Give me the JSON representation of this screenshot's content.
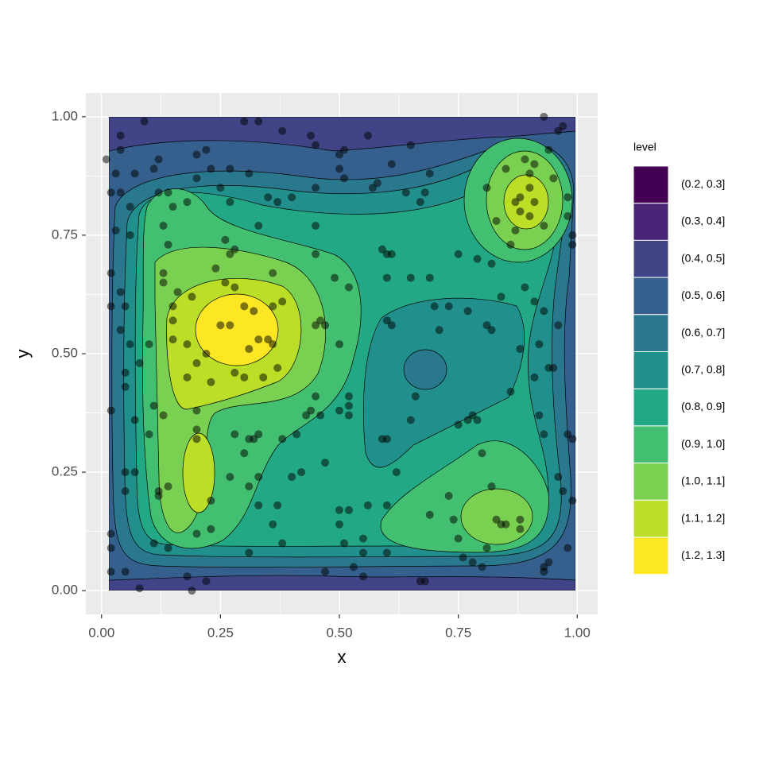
{
  "chart_data": {
    "type": "contour",
    "xlabel": "x",
    "ylabel": "y",
    "legend_title": "level",
    "levels": [
      "(0.2, 0.3]",
      "(0.3, 0.4]",
      "(0.4, 0.5]",
      "(0.5, 0.6]",
      "(0.6, 0.7]",
      "(0.7, 0.8]",
      "(0.8, 0.9]",
      "(0.9, 1.0]",
      "(1.0, 1.1]",
      "(1.1, 1.2]",
      "(1.2, 1.3]"
    ],
    "level_colors": [
      "#440154",
      "#482576",
      "#414487",
      "#35608D",
      "#2A788E",
      "#21908C",
      "#22A884",
      "#43BF71",
      "#7AD151",
      "#BBDF27",
      "#FDE725"
    ],
    "point_color": "#000000",
    "xlim": [
      -0.033,
      1.043
    ],
    "ylim": [
      -0.05,
      1.05
    ],
    "xticks": [
      {
        "value": 0,
        "label": "0.00"
      },
      0.25,
      {
        "value": 0.5,
        "label": "0.50"
      },
      0.75,
      {
        "value": 1,
        "label": "1.00"
      }
    ],
    "yticks": [
      {
        "value": 0,
        "label": "0.00"
      },
      0.25,
      {
        "value": 0.5,
        "label": "0.50"
      },
      0.75,
      {
        "value": 1,
        "label": "1.00"
      }
    ],
    "grid": true,
    "minor_grid": true,
    "x": [
      0.01,
      0.04,
      0.09,
      0.04,
      0.02,
      0.04,
      0.03,
      0.06,
      0.07,
      0.12,
      0.11,
      0.14,
      0.12,
      0.03,
      0.06,
      0.13,
      0.14,
      0.2,
      0.22,
      0.2,
      0.18,
      0.23,
      0.15,
      0.13,
      0.13,
      0.02,
      0.02,
      0.05,
      0.04,
      0.04,
      0.06,
      0.05,
      0.05,
      0.08,
      0.1,
      0.02,
      0.07,
      0.1,
      0.11,
      0.13,
      0.05,
      0.07,
      0.05,
      0.12,
      0.14,
      0.12,
      0.02,
      0.02,
      0.05,
      0.02,
      0.08,
      0.11,
      0.14,
      0.18,
      0.19,
      0.22,
      0.2,
      0.23,
      0.23,
      0.2,
      0.2,
      0.2,
      0.18,
      0.23,
      0.18,
      0.22,
      0.2,
      0.15,
      0.15,
      0.15,
      0.16,
      0.19,
      0.24,
      0.26,
      0.28,
      0.27,
      0.26,
      0.28,
      0.25,
      0.27,
      0.3,
      0.32,
      0.33,
      0.35,
      0.31,
      0.34,
      0.28,
      0.3,
      0.36,
      0.37,
      0.36,
      0.38,
      0.36,
      0.27,
      0.25,
      0.27,
      0.31,
      0.35,
      0.33,
      0.3,
      0.33,
      0.38,
      0.44,
      0.45,
      0.5,
      0.51,
      0.56,
      0.5,
      0.51,
      0.45,
      0.58,
      0.4,
      0.37,
      0.45,
      0.45,
      0.49,
      0.52,
      0.5,
      0.47,
      0.46,
      0.45,
      0.45,
      0.44,
      0.46,
      0.43,
      0.52,
      0.52,
      0.52,
      0.5,
      0.41,
      0.32,
      0.31,
      0.28,
      0.3,
      0.33,
      0.38,
      0.33,
      0.31,
      0.27,
      0.33,
      0.37,
      0.36,
      0.31,
      0.38,
      0.4,
      0.42,
      0.47,
      0.5,
      0.5,
      0.51,
      0.52,
      0.55,
      0.55,
      0.56,
      0.6,
      0.6,
      0.53,
      0.55,
      0.47,
      0.6,
      0.59,
      0.62,
      0.6,
      0.61,
      0.59,
      0.6,
      0.61,
      0.6,
      0.65,
      0.69,
      0.7,
      0.73,
      0.77,
      0.71,
      0.64,
      0.67,
      0.65,
      0.69,
      0.68,
      0.61,
      0.57,
      0.66,
      0.65,
      0.67,
      0.68,
      0.74,
      0.69,
      0.73,
      0.75,
      0.77,
      0.78,
      0.79,
      0.8,
      0.82,
      0.83,
      0.84,
      0.85,
      0.88,
      0.88,
      0.81,
      0.75,
      0.76,
      0.78,
      0.8,
      0.93,
      0.94,
      0.93,
      0.98,
      0.97,
      0.96,
      0.99,
      0.93,
      0.92,
      0.95,
      0.94,
      0.92,
      0.96,
      0.93,
      0.98,
      0.99,
      0.99,
      0.99,
      0.98,
      0.98,
      0.95,
      0.91,
      0.88,
      0.9,
      0.88,
      0.87,
      0.9,
      0.93,
      0.87,
      0.86,
      0.83,
      0.81,
      0.85,
      0.89,
      0.9,
      0.91,
      0.94,
      0.93,
      0.96,
      0.97,
      0.82,
      0.75,
      0.79,
      0.84,
      0.81,
      0.82,
      0.89,
      0.91,
      0.88,
      0.86,
      0.91
    ],
    "y": [
      0.91,
      0.96,
      0.99,
      0.93,
      0.84,
      0.84,
      0.88,
      0.81,
      0.88,
      0.91,
      0.89,
      0.84,
      0.84,
      0.76,
      0.75,
      0.77,
      0.73,
      0.92,
      0.93,
      0.87,
      0.82,
      0.89,
      0.81,
      0.67,
      0.65,
      0.67,
      0.6,
      0.6,
      0.63,
      0.55,
      0.52,
      0.46,
      0.43,
      0.48,
      0.52,
      0.38,
      0.36,
      0.33,
      0.39,
      0.37,
      0.25,
      0.25,
      0.21,
      0.21,
      0.22,
      0.2,
      0.12,
      0.09,
      0.04,
      0.04,
      0.005,
      0.1,
      0.09,
      0.03,
      0,
      0.02,
      0.12,
      0.13,
      0.19,
      0.32,
      0.34,
      0.38,
      0.45,
      0.44,
      0.52,
      0.5,
      0.48,
      0.53,
      0.6,
      0.57,
      0.63,
      0.62,
      0.68,
      0.65,
      0.64,
      0.71,
      0.74,
      0.72,
      0.56,
      0.56,
      0.6,
      0.59,
      0.53,
      0.53,
      0.51,
      0.45,
      0.46,
      0.45,
      0.52,
      0.47,
      0.6,
      0.61,
      0.67,
      0.82,
      0.85,
      0.89,
      0.88,
      0.83,
      0.77,
      0.99,
      0.99,
      0.97,
      0.96,
      0.94,
      0.92,
      0.93,
      0.96,
      0.89,
      0.87,
      0.85,
      0.86,
      0.83,
      0.82,
      0.77,
      0.71,
      0.66,
      0.64,
      0.52,
      0.56,
      0.57,
      0.56,
      0.41,
      0.38,
      0.37,
      0.37,
      0.41,
      0.39,
      0.37,
      0.38,
      0.33,
      0.32,
      0.32,
      0.33,
      0.29,
      0.33,
      0.32,
      0.24,
      0.22,
      0.24,
      0.18,
      0.18,
      0.14,
      0.08,
      0.1,
      0.24,
      0.25,
      0.27,
      0.17,
      0.14,
      0.1,
      0.17,
      0.11,
      0.08,
      0.18,
      0.18,
      0.08,
      0.05,
      0.03,
      0.04,
      0.32,
      0.32,
      0.25,
      0.57,
      0.56,
      0.72,
      0.71,
      0.71,
      0.66,
      0.66,
      0.66,
      0.6,
      0.6,
      0.59,
      0.55,
      0.84,
      0.82,
      0.94,
      0.88,
      0.84,
      0.9,
      0.85,
      0.41,
      0.36,
      0.02,
      0.02,
      0.15,
      0.16,
      0.2,
      0.35,
      0.36,
      0.37,
      0.36,
      0.29,
      0.22,
      0.15,
      0.14,
      0.14,
      0.15,
      0.13,
      0.09,
      0.11,
      0.07,
      0.06,
      0.05,
      0.05,
      0.06,
      0.04,
      0.09,
      0.21,
      0.24,
      0.19,
      0.33,
      0.37,
      0.47,
      0.47,
      0.52,
      0.56,
      0.59,
      0.33,
      0.32,
      0.73,
      0.75,
      0.79,
      0.83,
      0.87,
      0.82,
      0.83,
      0.85,
      0.8,
      0.82,
      0.79,
      0.77,
      0.76,
      0.73,
      0.78,
      0.85,
      0.89,
      0.91,
      0.88,
      0.9,
      0.93,
      1,
      0.97,
      0.98,
      0.69,
      0.71,
      0.7,
      0.62,
      0.56,
      0.55,
      0.64,
      0.61,
      0.51,
      0.42,
      0.45
    ]
  }
}
